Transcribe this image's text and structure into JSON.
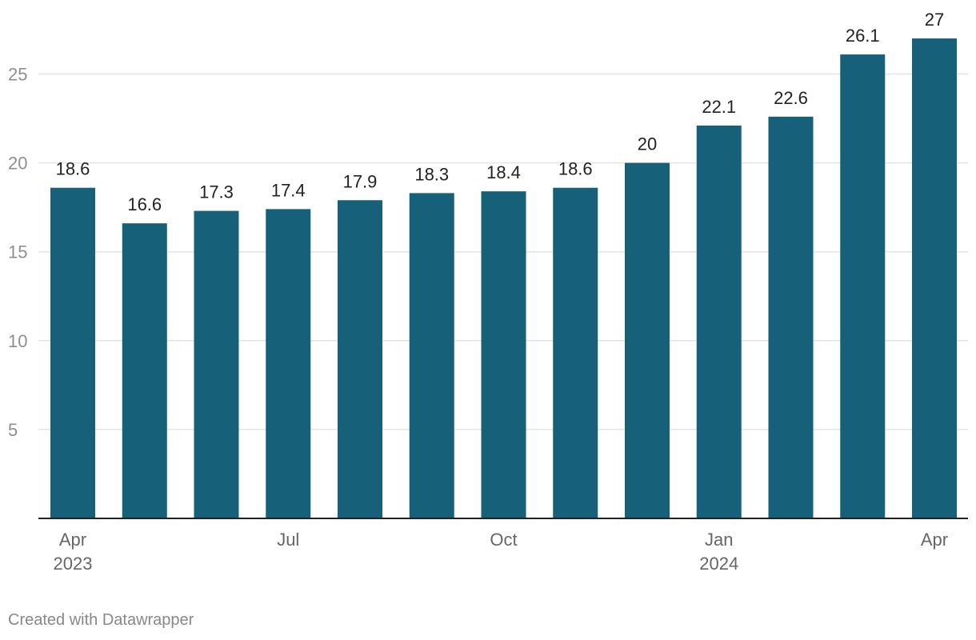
{
  "chart_data": {
    "type": "bar",
    "categories": [
      "Apr 2023",
      "May 2023",
      "Jun 2023",
      "Jul 2023",
      "Aug 2023",
      "Sep 2023",
      "Oct 2023",
      "Nov 2023",
      "Dec 2023",
      "Jan 2024",
      "Feb 2024",
      "Mar 2024",
      "Apr 2024"
    ],
    "values": [
      18.6,
      16.6,
      17.3,
      17.4,
      17.9,
      18.3,
      18.4,
      18.6,
      20,
      22.1,
      22.6,
      26.1,
      27
    ],
    "value_labels": [
      "18.6",
      "16.6",
      "17.3",
      "17.4",
      "17.9",
      "18.3",
      "18.4",
      "18.6",
      "20",
      "22.1",
      "22.6",
      "26.1",
      "27"
    ],
    "x_tick_labels": [
      {
        "index": 0,
        "lines": [
          "Apr",
          "2023"
        ]
      },
      {
        "index": 3,
        "lines": [
          "Jul"
        ]
      },
      {
        "index": 6,
        "lines": [
          "Oct"
        ]
      },
      {
        "index": 9,
        "lines": [
          "Jan",
          "2024"
        ]
      },
      {
        "index": 12,
        "lines": [
          "Apr"
        ]
      }
    ],
    "y_ticks": [
      5,
      10,
      15,
      20,
      25
    ],
    "ylim": [
      0,
      27
    ],
    "grid": true,
    "bar_color": "#17607a",
    "title": "",
    "xlabel": "",
    "ylabel": ""
  },
  "footer": {
    "credit": "Created with Datawrapper"
  }
}
